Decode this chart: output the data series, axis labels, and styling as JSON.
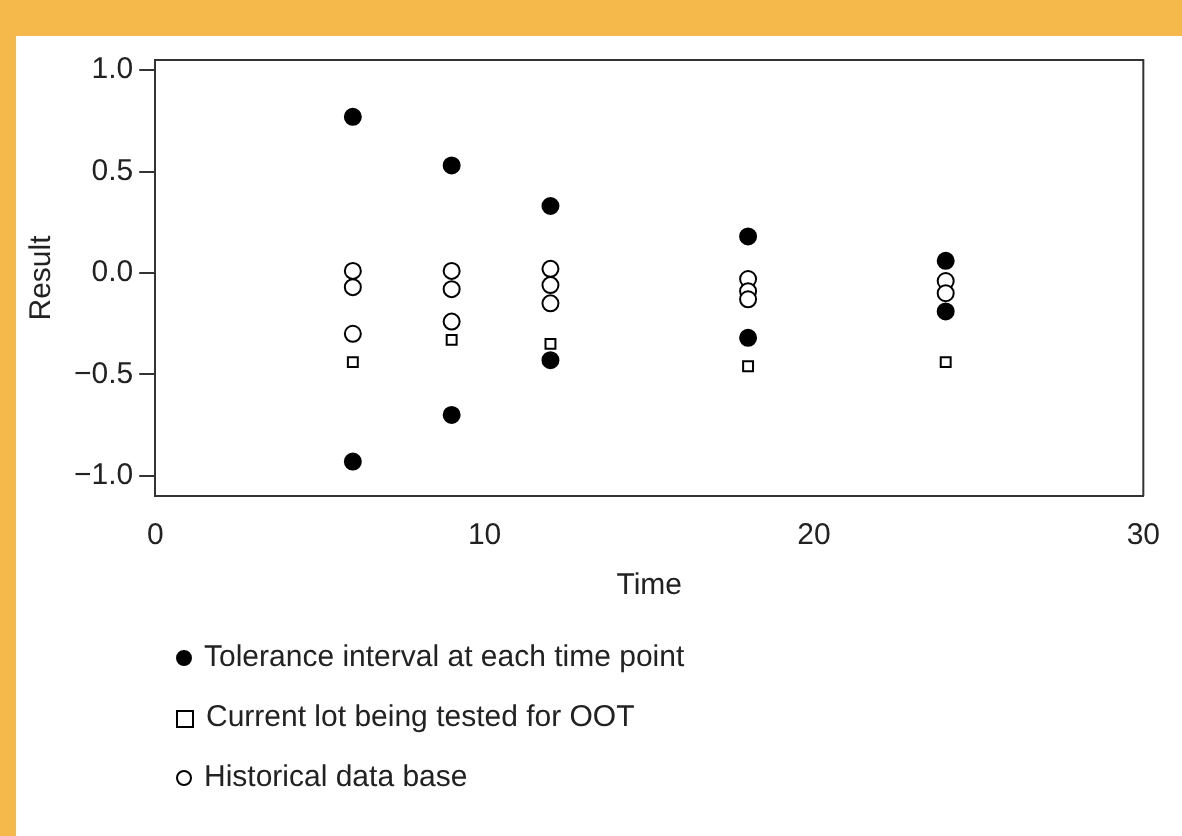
{
  "chart_data": {
    "type": "scatter",
    "xlabel": "Time",
    "ylabel": "Result",
    "xlim": [
      0,
      30
    ],
    "xticks": [
      0,
      10,
      20,
      30
    ],
    "ylim": [
      -1.1,
      1.05
    ],
    "yticks": [
      {
        "value": -1,
        "label": "−1.0"
      },
      {
        "value": -0.5,
        "label": "−0.5"
      },
      {
        "value": 0,
        "label": "0.0"
      },
      0.5,
      {
        "value": 1,
        "label": "1.0"
      }
    ],
    "grid": false,
    "legend": "bottom",
    "series": [
      {
        "name": "Tolerance interval at each time point",
        "color": "#000000",
        "marker": "circle",
        "x": [
          6,
          6,
          9,
          9,
          12,
          12,
          18,
          18,
          24,
          24
        ],
        "values": [
          0.77,
          -0.93,
          0.53,
          -0.7,
          0.33,
          -0.43,
          0.18,
          -0.32,
          0.06,
          -0.19
        ]
      },
      {
        "name": "Current lot being tested for OOT",
        "color": "#ffffff",
        "marker": "square",
        "x": [
          6,
          9,
          12,
          18,
          24
        ],
        "values": [
          -0.44,
          -0.33,
          -0.35,
          -0.46,
          -0.44
        ]
      },
      {
        "name": "Historical data base",
        "color": "#ffffff",
        "marker": "circle",
        "x": [
          6,
          6,
          6,
          9,
          9,
          9,
          12,
          12,
          12,
          18,
          18,
          18,
          24,
          24
        ],
        "values": [
          0.01,
          -0.07,
          -0.3,
          0.01,
          -0.08,
          -0.24,
          0.02,
          -0.06,
          -0.15,
          -0.03,
          -0.09,
          -0.13,
          -0.04,
          -0.1
        ]
      }
    ]
  }
}
